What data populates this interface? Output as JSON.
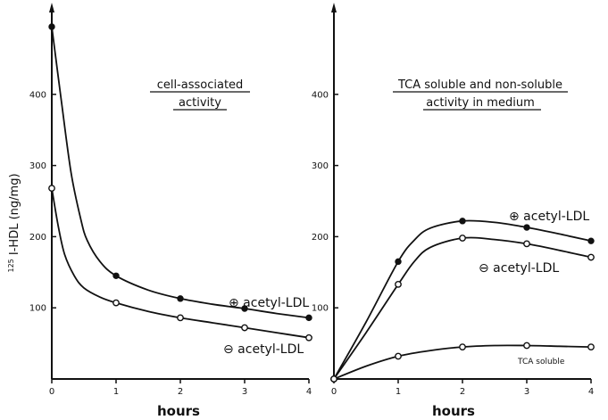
{
  "chart_data": [
    {
      "type": "line",
      "title_lines": [
        "cell-associated",
        "activity"
      ],
      "xlabel": "hours",
      "ylabel_super": "125",
      "ylabel_main": "I-HDL  (ng/mg)",
      "xlim": [
        0,
        4
      ],
      "ylim": [
        0,
        500
      ],
      "xticks": [
        "0",
        "1",
        "2",
        "3",
        "4"
      ],
      "yticks": [
        "100",
        "200",
        "300",
        "400"
      ],
      "series": [
        {
          "name": "⊕ acetyl-LDL",
          "marker": "filled",
          "points": [
            [
              0,
              495
            ],
            [
              1,
              145
            ],
            [
              2,
              113
            ],
            [
              3,
              99
            ],
            [
              4,
              86
            ]
          ],
          "curve": [
            [
              0,
              495
            ],
            [
              0.15,
              390
            ],
            [
              0.3,
              290
            ],
            [
              0.45,
              225
            ],
            [
              0.55,
              195
            ],
            [
              0.75,
              165
            ],
            [
              1,
              145
            ],
            [
              1.5,
              125
            ],
            [
              2,
              113
            ],
            [
              2.5,
              105
            ],
            [
              3,
              99
            ],
            [
              3.5,
              92
            ],
            [
              4,
              86
            ]
          ]
        },
        {
          "name": "⊖ acetyl-LDL",
          "marker": "open",
          "points": [
            [
              0,
              268
            ],
            [
              1,
              107
            ],
            [
              2,
              86
            ],
            [
              3,
              72
            ],
            [
              4,
              58
            ]
          ],
          "curve": [
            [
              0,
              268
            ],
            [
              0.1,
              215
            ],
            [
              0.2,
              175
            ],
            [
              0.35,
              145
            ],
            [
              0.5,
              128
            ],
            [
              0.75,
              115
            ],
            [
              1,
              107
            ],
            [
              1.5,
              95
            ],
            [
              2,
              86
            ],
            [
              2.5,
              79
            ],
            [
              3,
              72
            ],
            [
              3.5,
              65
            ],
            [
              4,
              58
            ]
          ]
        }
      ]
    },
    {
      "type": "line",
      "title_lines": [
        "TCA soluble and non-soluble",
        "activity in medium"
      ],
      "xlabel": "hours",
      "xlim": [
        0,
        4
      ],
      "ylim": [
        0,
        500
      ],
      "xticks": [
        "0",
        "1",
        "2",
        "3",
        "4"
      ],
      "yticks": [
        "100",
        "200",
        "300",
        "400"
      ],
      "series": [
        {
          "name": "⊕ acetyl-LDL",
          "marker": "filled",
          "points": [
            [
              0,
              0
            ],
            [
              1,
              165
            ],
            [
              2,
              222
            ],
            [
              3,
              213
            ],
            [
              4,
              194
            ]
          ],
          "curve": [
            [
              0,
              0
            ],
            [
              0.5,
              80
            ],
            [
              1,
              165
            ],
            [
              1.25,
              195
            ],
            [
              1.5,
              212
            ],
            [
              2,
              222
            ],
            [
              2.5,
              220
            ],
            [
              3,
              213
            ],
            [
              3.5,
              204
            ],
            [
              4,
              194
            ]
          ]
        },
        {
          "name": "⊖ acetyl-LDL",
          "marker": "open",
          "points": [
            [
              0,
              0
            ],
            [
              1,
              133
            ],
            [
              2,
              198
            ],
            [
              3,
              190
            ],
            [
              4,
              171
            ]
          ],
          "curve": [
            [
              0,
              0
            ],
            [
              0.5,
              65
            ],
            [
              1,
              133
            ],
            [
              1.25,
              165
            ],
            [
              1.5,
              185
            ],
            [
              2,
              198
            ],
            [
              2.5,
              196
            ],
            [
              3,
              190
            ],
            [
              3.5,
              181
            ],
            [
              4,
              171
            ]
          ]
        },
        {
          "name": "TCA soluble",
          "marker": "open",
          "points": [
            [
              0,
              0
            ],
            [
              1,
              32
            ],
            [
              2,
              45
            ],
            [
              3,
              47
            ],
            [
              4,
              45
            ]
          ],
          "curve": [
            [
              0,
              0
            ],
            [
              0.5,
              18
            ],
            [
              1,
              32
            ],
            [
              1.5,
              40
            ],
            [
              2,
              45
            ],
            [
              2.5,
              47
            ],
            [
              3,
              47
            ],
            [
              3.5,
              46
            ],
            [
              4,
              45
            ]
          ]
        }
      ]
    }
  ]
}
